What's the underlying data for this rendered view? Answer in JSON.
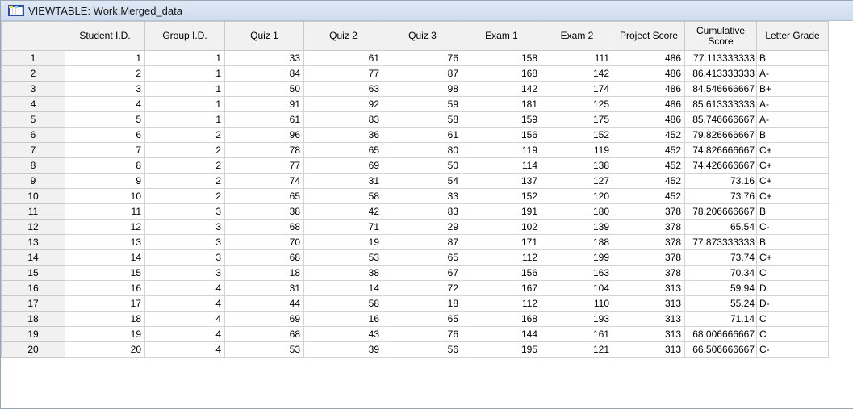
{
  "window": {
    "title": "VIEWTABLE: Work.Merged_data",
    "icon": "table-viewer-icon"
  },
  "columns": [
    {
      "key": "student_id",
      "label": "Student I.D."
    },
    {
      "key": "group_id",
      "label": "Group I.D."
    },
    {
      "key": "quiz1",
      "label": "Quiz 1"
    },
    {
      "key": "quiz2",
      "label": "Quiz 2"
    },
    {
      "key": "quiz3",
      "label": "Quiz 3"
    },
    {
      "key": "exam1",
      "label": "Exam 1"
    },
    {
      "key": "exam2",
      "label": "Exam 2"
    },
    {
      "key": "project",
      "label": "Project Score"
    },
    {
      "key": "cumulative",
      "label": "Cumulative Score"
    },
    {
      "key": "grade",
      "label": "Letter Grade"
    }
  ],
  "rows": [
    {
      "n": "1",
      "student_id": "1",
      "group_id": "1",
      "quiz1": "33",
      "quiz2": "61",
      "quiz3": "76",
      "exam1": "158",
      "exam2": "111",
      "project": "486",
      "cumulative": "77.113333333",
      "grade": "B"
    },
    {
      "n": "2",
      "student_id": "2",
      "group_id": "1",
      "quiz1": "84",
      "quiz2": "77",
      "quiz3": "87",
      "exam1": "168",
      "exam2": "142",
      "project": "486",
      "cumulative": "86.413333333",
      "grade": "A-"
    },
    {
      "n": "3",
      "student_id": "3",
      "group_id": "1",
      "quiz1": "50",
      "quiz2": "63",
      "quiz3": "98",
      "exam1": "142",
      "exam2": "174",
      "project": "486",
      "cumulative": "84.546666667",
      "grade": "B+"
    },
    {
      "n": "4",
      "student_id": "4",
      "group_id": "1",
      "quiz1": "91",
      "quiz2": "92",
      "quiz3": "59",
      "exam1": "181",
      "exam2": "125",
      "project": "486",
      "cumulative": "85.613333333",
      "grade": "A-"
    },
    {
      "n": "5",
      "student_id": "5",
      "group_id": "1",
      "quiz1": "61",
      "quiz2": "83",
      "quiz3": "58",
      "exam1": "159",
      "exam2": "175",
      "project": "486",
      "cumulative": "85.746666667",
      "grade": "A-"
    },
    {
      "n": "6",
      "student_id": "6",
      "group_id": "2",
      "quiz1": "96",
      "quiz2": "36",
      "quiz3": "61",
      "exam1": "156",
      "exam2": "152",
      "project": "452",
      "cumulative": "79.826666667",
      "grade": "B"
    },
    {
      "n": "7",
      "student_id": "7",
      "group_id": "2",
      "quiz1": "78",
      "quiz2": "65",
      "quiz3": "80",
      "exam1": "119",
      "exam2": "119",
      "project": "452",
      "cumulative": "74.826666667",
      "grade": "C+"
    },
    {
      "n": "8",
      "student_id": "8",
      "group_id": "2",
      "quiz1": "77",
      "quiz2": "69",
      "quiz3": "50",
      "exam1": "114",
      "exam2": "138",
      "project": "452",
      "cumulative": "74.426666667",
      "grade": "C+"
    },
    {
      "n": "9",
      "student_id": "9",
      "group_id": "2",
      "quiz1": "74",
      "quiz2": "31",
      "quiz3": "54",
      "exam1": "137",
      "exam2": "127",
      "project": "452",
      "cumulative": "73.16",
      "grade": "C+"
    },
    {
      "n": "10",
      "student_id": "10",
      "group_id": "2",
      "quiz1": "65",
      "quiz2": "58",
      "quiz3": "33",
      "exam1": "152",
      "exam2": "120",
      "project": "452",
      "cumulative": "73.76",
      "grade": "C+"
    },
    {
      "n": "11",
      "student_id": "11",
      "group_id": "3",
      "quiz1": "38",
      "quiz2": "42",
      "quiz3": "83",
      "exam1": "191",
      "exam2": "180",
      "project": "378",
      "cumulative": "78.206666667",
      "grade": "B"
    },
    {
      "n": "12",
      "student_id": "12",
      "group_id": "3",
      "quiz1": "68",
      "quiz2": "71",
      "quiz3": "29",
      "exam1": "102",
      "exam2": "139",
      "project": "378",
      "cumulative": "65.54",
      "grade": "C-"
    },
    {
      "n": "13",
      "student_id": "13",
      "group_id": "3",
      "quiz1": "70",
      "quiz2": "19",
      "quiz3": "87",
      "exam1": "171",
      "exam2": "188",
      "project": "378",
      "cumulative": "77.873333333",
      "grade": "B"
    },
    {
      "n": "14",
      "student_id": "14",
      "group_id": "3",
      "quiz1": "68",
      "quiz2": "53",
      "quiz3": "65",
      "exam1": "112",
      "exam2": "199",
      "project": "378",
      "cumulative": "73.74",
      "grade": "C+"
    },
    {
      "n": "15",
      "student_id": "15",
      "group_id": "3",
      "quiz1": "18",
      "quiz2": "38",
      "quiz3": "67",
      "exam1": "156",
      "exam2": "163",
      "project": "378",
      "cumulative": "70.34",
      "grade": "C"
    },
    {
      "n": "16",
      "student_id": "16",
      "group_id": "4",
      "quiz1": "31",
      "quiz2": "14",
      "quiz3": "72",
      "exam1": "167",
      "exam2": "104",
      "project": "313",
      "cumulative": "59.94",
      "grade": "D"
    },
    {
      "n": "17",
      "student_id": "17",
      "group_id": "4",
      "quiz1": "44",
      "quiz2": "58",
      "quiz3": "18",
      "exam1": "112",
      "exam2": "110",
      "project": "313",
      "cumulative": "55.24",
      "grade": "D-"
    },
    {
      "n": "18",
      "student_id": "18",
      "group_id": "4",
      "quiz1": "69",
      "quiz2": "16",
      "quiz3": "65",
      "exam1": "168",
      "exam2": "193",
      "project": "313",
      "cumulative": "71.14",
      "grade": "C"
    },
    {
      "n": "19",
      "student_id": "19",
      "group_id": "4",
      "quiz1": "68",
      "quiz2": "43",
      "quiz3": "76",
      "exam1": "144",
      "exam2": "161",
      "project": "313",
      "cumulative": "68.006666667",
      "grade": "C"
    },
    {
      "n": "20",
      "student_id": "20",
      "group_id": "4",
      "quiz1": "53",
      "quiz2": "39",
      "quiz3": "56",
      "exam1": "195",
      "exam2": "121",
      "project": "313",
      "cumulative": "66.506666667",
      "grade": "C-"
    }
  ]
}
